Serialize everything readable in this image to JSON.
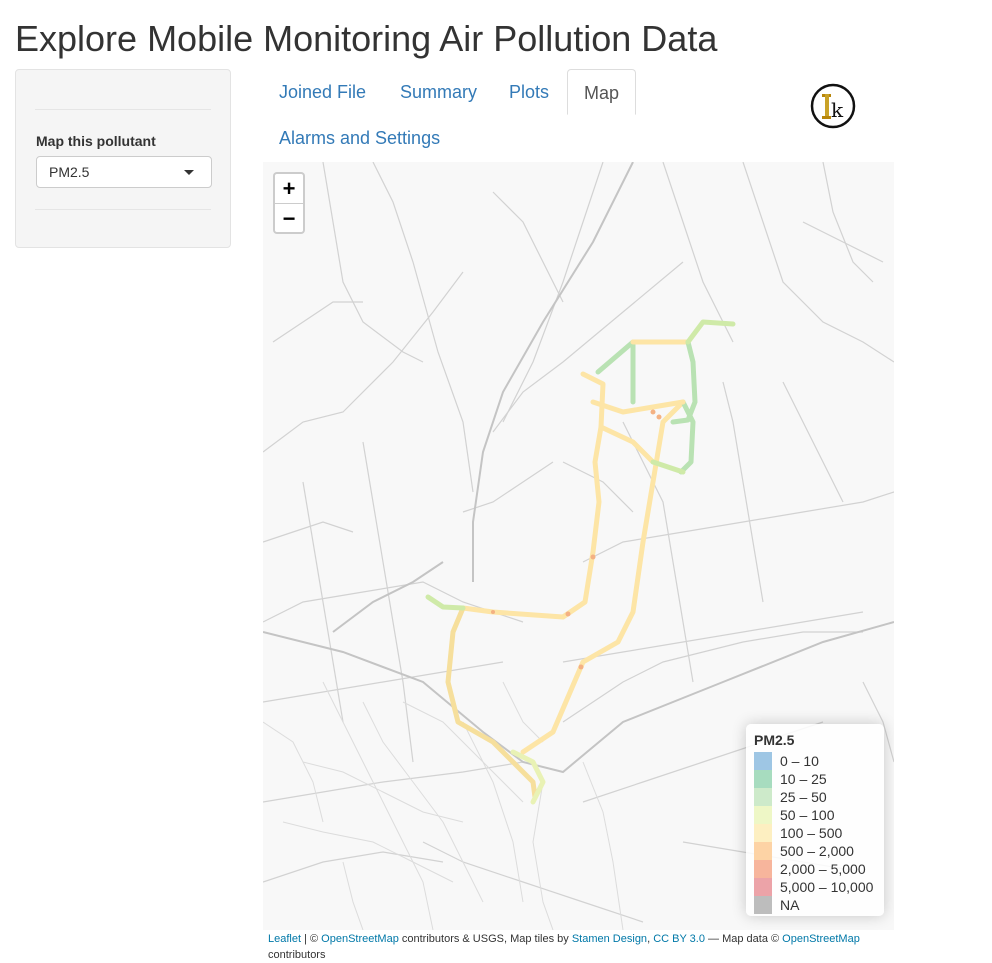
{
  "app": {
    "title": "Explore Mobile Monitoring Air Pollution Data"
  },
  "sidebar": {
    "pollutant_label": "Map this pollutant",
    "pollutant_select": {
      "value": "PM2.5"
    }
  },
  "tabs": [
    {
      "label": "Joined File",
      "active": false
    },
    {
      "label": "Summary",
      "active": false
    },
    {
      "label": "Plots",
      "active": false
    },
    {
      "label": "Map",
      "active": true
    },
    {
      "label": "Alarms and Settings",
      "active": false
    }
  ],
  "logo": {
    "text": "k",
    "icon": "logo-icon"
  },
  "map": {
    "zoom_in": "+",
    "zoom_out": "−",
    "legend": {
      "title": "PM2.5",
      "items": [
        {
          "label": "0 – 10",
          "color": "#9ec6e4"
        },
        {
          "label": "10 – 25",
          "color": "#a7dcbf"
        },
        {
          "label": "25 – 50",
          "color": "#cdeaca"
        },
        {
          "label": "50 – 100",
          "color": "#eef7c6"
        },
        {
          "label": "100 – 500",
          "color": "#fdefc1"
        },
        {
          "label": "500 – 2,000",
          "color": "#fdd3a5"
        },
        {
          "label": "2,000 – 5,000",
          "color": "#f7b59c"
        },
        {
          "label": "5,000 – 10,000",
          "color": "#eca3a8"
        },
        {
          "label": "NA",
          "color": "#bdbdbd"
        }
      ]
    },
    "attribution": {
      "leaflet": "Leaflet",
      "sep1": " | © ",
      "osm1": "OpenStreetMap",
      "mid1": " contributors & USGS, Map tiles by ",
      "stamen": "Stamen Design",
      "comma": ", ",
      "cc": "CC BY 3.0",
      "mid2": " — Map data © ",
      "osm2": "OpenStreetMap",
      "end": " contributors"
    }
  }
}
